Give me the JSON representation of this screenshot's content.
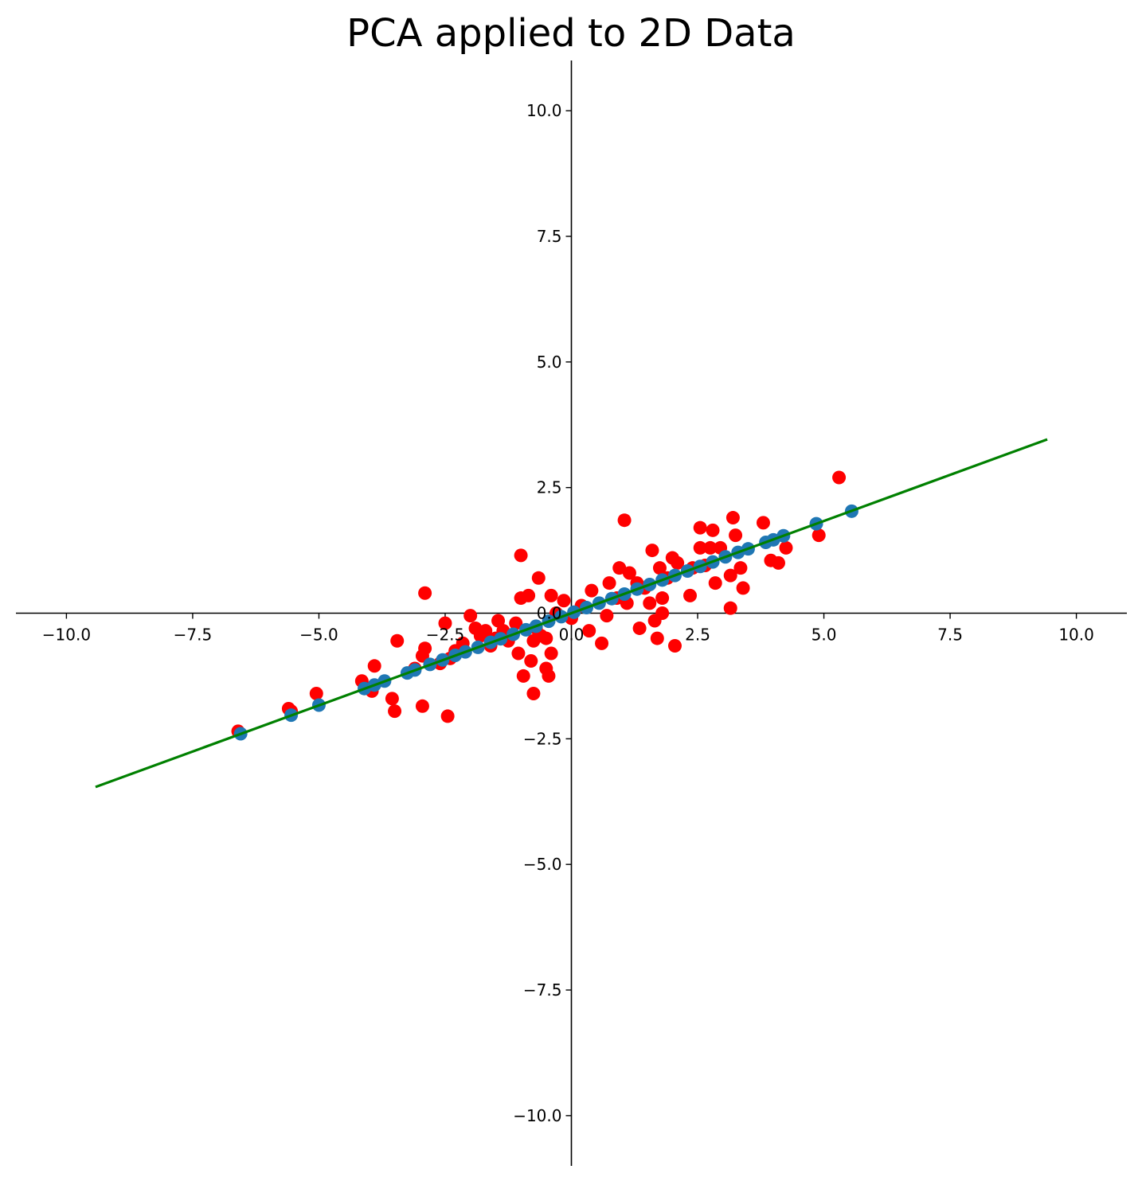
{
  "chart_data": {
    "type": "scatter",
    "title": "PCA applied to 2D Data",
    "xlabel": "",
    "ylabel": "",
    "xlim": [
      -11,
      11
    ],
    "ylim": [
      -11,
      11
    ],
    "axes_style": "spines centered at origin (0,0); no top/right spines; no grid",
    "x_ticks": [
      -10.0,
      -7.5,
      -5.0,
      -2.5,
      0.0,
      2.5,
      5.0,
      7.5,
      10.0
    ],
    "y_ticks": [
      -10.0,
      -7.5,
      -5.0,
      -2.5,
      0.0,
      2.5,
      5.0,
      7.5,
      10.0
    ],
    "x_tick_labels": [
      "−10.0",
      "−7.5",
      "−5.0",
      "−2.5",
      "0.0",
      "2.5",
      "5.0",
      "7.5",
      "10.0"
    ],
    "y_tick_labels": [
      "−10.0",
      "−7.5",
      "−5.0",
      "−2.5",
      "0.0",
      "2.5",
      "5.0",
      "7.5",
      "10.0"
    ],
    "colors": {
      "original": "#ff0000",
      "projected": "#1f77b4",
      "component_line": "#008000"
    },
    "series": [
      {
        "kind": "line",
        "color": "#008000",
        "points": [
          [
            -9.4,
            -3.45
          ],
          [
            9.4,
            3.45
          ]
        ]
      },
      {
        "kind": "scatter",
        "color": "#ff0000",
        "points": [
          [
            -6.6,
            -2.35
          ],
          [
            -5.6,
            -1.9
          ],
          [
            -5.55,
            -1.95
          ],
          [
            -5.05,
            -1.6
          ],
          [
            -4.15,
            -1.35
          ],
          [
            -3.9,
            -1.05
          ],
          [
            -3.95,
            -1.55
          ],
          [
            -3.55,
            -1.7
          ],
          [
            -3.5,
            -1.95
          ],
          [
            -3.45,
            -0.55
          ],
          [
            -3.1,
            -1.1
          ],
          [
            -2.95,
            -1.85
          ],
          [
            -2.9,
            0.4
          ],
          [
            -2.9,
            -0.7
          ],
          [
            -2.95,
            -0.85
          ],
          [
            -2.6,
            -1.0
          ],
          [
            -2.5,
            -0.2
          ],
          [
            -2.45,
            -2.05
          ],
          [
            -2.4,
            -0.9
          ],
          [
            -2.3,
            -0.75
          ],
          [
            -2.15,
            -0.6
          ],
          [
            -2.0,
            -0.05
          ],
          [
            -1.9,
            -0.3
          ],
          [
            -1.8,
            -0.45
          ],
          [
            -1.7,
            -0.35
          ],
          [
            -1.6,
            -0.65
          ],
          [
            -1.5,
            -0.5
          ],
          [
            -1.45,
            -0.15
          ],
          [
            -1.35,
            -0.35
          ],
          [
            -1.25,
            -0.55
          ],
          [
            -1.1,
            -0.2
          ],
          [
            -1.05,
            -0.8
          ],
          [
            -1.0,
            0.3
          ],
          [
            -1.0,
            1.15
          ],
          [
            -0.95,
            -1.25
          ],
          [
            -0.85,
            0.35
          ],
          [
            -0.8,
            -0.95
          ],
          [
            -0.75,
            -0.55
          ],
          [
            -0.75,
            -1.6
          ],
          [
            -0.7,
            -0.3
          ],
          [
            -0.65,
            0.7
          ],
          [
            -0.6,
            -0.45
          ],
          [
            -0.5,
            -0.5
          ],
          [
            -0.5,
            -1.1
          ],
          [
            -0.45,
            -1.25
          ],
          [
            -0.4,
            -0.8
          ],
          [
            -0.4,
            0.35
          ],
          [
            -0.3,
            0.0
          ],
          [
            -0.15,
            0.25
          ],
          [
            0.0,
            -0.1
          ],
          [
            0.2,
            0.15
          ],
          [
            0.35,
            -0.35
          ],
          [
            0.4,
            0.45
          ],
          [
            0.6,
            -0.6
          ],
          [
            0.7,
            -0.05
          ],
          [
            0.75,
            0.6
          ],
          [
            0.9,
            0.3
          ],
          [
            0.95,
            0.9
          ],
          [
            1.05,
            1.85
          ],
          [
            1.1,
            0.2
          ],
          [
            1.15,
            0.8
          ],
          [
            1.3,
            0.6
          ],
          [
            1.35,
            -0.3
          ],
          [
            1.45,
            0.5
          ],
          [
            1.55,
            0.2
          ],
          [
            1.6,
            1.25
          ],
          [
            1.65,
            -0.15
          ],
          [
            1.7,
            -0.5
          ],
          [
            1.75,
            0.9
          ],
          [
            1.8,
            0.3
          ],
          [
            1.8,
            0.0
          ],
          [
            1.9,
            0.7
          ],
          [
            2.0,
            1.1
          ],
          [
            2.05,
            -0.65
          ],
          [
            2.1,
            1.0
          ],
          [
            2.35,
            0.35
          ],
          [
            2.4,
            0.9
          ],
          [
            2.55,
            1.3
          ],
          [
            2.55,
            1.7
          ],
          [
            2.65,
            0.95
          ],
          [
            2.75,
            1.3
          ],
          [
            2.8,
            1.65
          ],
          [
            2.85,
            0.6
          ],
          [
            2.95,
            1.3
          ],
          [
            3.15,
            0.1
          ],
          [
            3.15,
            0.75
          ],
          [
            3.2,
            1.9
          ],
          [
            3.25,
            1.55
          ],
          [
            3.35,
            0.9
          ],
          [
            3.4,
            0.5
          ],
          [
            3.8,
            1.8
          ],
          [
            3.95,
            1.05
          ],
          [
            4.1,
            1.0
          ],
          [
            4.25,
            1.3
          ],
          [
            4.9,
            1.55
          ],
          [
            5.3,
            2.7
          ]
        ]
      },
      {
        "kind": "scatter",
        "color": "#1f77b4",
        "points": [
          [
            -6.55,
            -2.4
          ],
          [
            -5.55,
            -2.03
          ],
          [
            -5.0,
            -1.83
          ],
          [
            -4.1,
            -1.5
          ],
          [
            -3.9,
            -1.43
          ],
          [
            -3.7,
            -1.35
          ],
          [
            -3.25,
            -1.19
          ],
          [
            -3.1,
            -1.13
          ],
          [
            -2.8,
            -1.02
          ],
          [
            -2.55,
            -0.93
          ],
          [
            -2.3,
            -0.84
          ],
          [
            -2.1,
            -0.77
          ],
          [
            -1.85,
            -0.68
          ],
          [
            -1.6,
            -0.58
          ],
          [
            -1.4,
            -0.51
          ],
          [
            -1.15,
            -0.42
          ],
          [
            -0.9,
            -0.33
          ],
          [
            -0.7,
            -0.26
          ],
          [
            -0.45,
            -0.16
          ],
          [
            -0.2,
            -0.07
          ],
          [
            0.05,
            0.02
          ],
          [
            0.3,
            0.11
          ],
          [
            0.55,
            0.2
          ],
          [
            0.8,
            0.29
          ],
          [
            1.05,
            0.38
          ],
          [
            1.3,
            0.48
          ],
          [
            1.55,
            0.57
          ],
          [
            1.8,
            0.66
          ],
          [
            2.05,
            0.75
          ],
          [
            2.3,
            0.84
          ],
          [
            2.55,
            0.93
          ],
          [
            2.8,
            1.02
          ],
          [
            3.05,
            1.12
          ],
          [
            3.3,
            1.21
          ],
          [
            3.5,
            1.28
          ],
          [
            3.85,
            1.41
          ],
          [
            4.0,
            1.46
          ],
          [
            4.2,
            1.54
          ],
          [
            4.85,
            1.78
          ],
          [
            5.55,
            2.03
          ]
        ]
      }
    ]
  }
}
